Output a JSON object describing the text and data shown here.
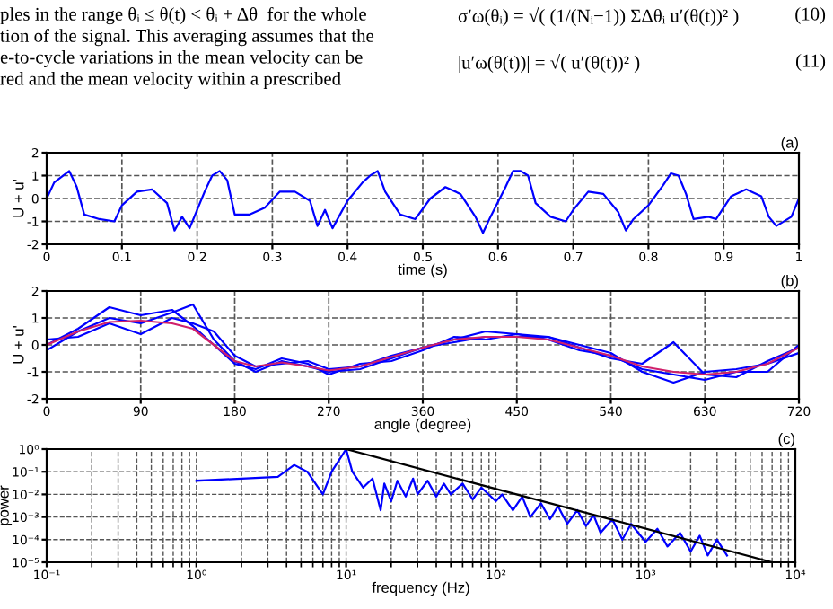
{
  "chart_data": [
    {
      "type": "other",
      "annotations": [
        "ples in the range θᵢ ≤ θ(t) < θᵢ + Δθ  for the whole",
        "tion of the signal. This averaging assumes that the",
        "e-to-cycle variations in the mean velocity can be",
        "red and the mean velocity within a prescribed",
        "σ′ω(θᵢ) = √( (1/(Nᵢ−1)) ΣΔθᵢ u′(θ(t))² )",
        "(10)",
        "|u′ω(θ(t))| = √( u′(θ(t))² )",
        "(11)"
      ]
    },
    {
      "type": "line",
      "xlabel": "time (s)",
      "ylabel": "U + u'",
      "annotations": [
        "(a)"
      ],
      "x": [
        0,
        0.01,
        0.03,
        0.04,
        0.05,
        0.07,
        0.09,
        0.1,
        0.12,
        0.14,
        0.16,
        0.17,
        0.18,
        0.19,
        0.21,
        0.22,
        0.23,
        0.24,
        0.25,
        0.27,
        0.29,
        0.31,
        0.33,
        0.35,
        0.36,
        0.37,
        0.38,
        0.4,
        0.42,
        0.43,
        0.44,
        0.45,
        0.47,
        0.49,
        0.51,
        0.53,
        0.55,
        0.57,
        0.58,
        0.59,
        0.61,
        0.62,
        0.63,
        0.64,
        0.65,
        0.67,
        0.69,
        0.7,
        0.72,
        0.74,
        0.76,
        0.77,
        0.78,
        0.8,
        0.82,
        0.83,
        0.84,
        0.85,
        0.86,
        0.88,
        0.89,
        0.91,
        0.93,
        0.95,
        0.96,
        0.97,
        0.99,
        1.0
      ],
      "series": [
        {
          "color": "#0000ff",
          "values": [
            0,
            0.7,
            1.2,
            0.5,
            -0.7,
            -0.9,
            -1.0,
            -0.3,
            0.3,
            0.4,
            -0.2,
            -1.4,
            -0.8,
            -1.3,
            0.3,
            1.0,
            1.2,
            0.8,
            -0.7,
            -0.7,
            -0.4,
            0.3,
            0.3,
            -0.1,
            -1.2,
            -0.5,
            -1.3,
            -0.1,
            0.7,
            1.0,
            1.2,
            0.3,
            -0.7,
            -0.9,
            0.0,
            0.5,
            0.2,
            -0.8,
            -1.5,
            -0.8,
            0.5,
            1.2,
            1.2,
            1.0,
            -0.2,
            -0.8,
            -1.0,
            -0.5,
            0.3,
            0.2,
            -0.6,
            -1.4,
            -0.9,
            -0.3,
            0.6,
            1.1,
            1.0,
            0.2,
            -0.9,
            -0.8,
            -0.9,
            0.1,
            0.4,
            0.1,
            -0.8,
            -1.2,
            -0.8,
            0.0
          ]
        }
      ],
      "xlim": [
        0,
        1
      ],
      "xticks": [
        0,
        0.1,
        0.2,
        0.3,
        0.4,
        0.5,
        0.6,
        0.7,
        0.8,
        0.9,
        1
      ],
      "ylim": [
        -2,
        2
      ],
      "yticks": [
        -2,
        -1,
        0,
        1,
        2
      ],
      "grid": true,
      "line_style": "solid",
      "marker": "none"
    },
    {
      "type": "line",
      "xlabel": "angle (degree)",
      "ylabel": "U + u'",
      "annotations": [
        "(b)"
      ],
      "x": [
        0,
        30,
        60,
        90,
        120,
        140,
        160,
        180,
        200,
        225,
        250,
        270,
        300,
        330,
        360,
        390,
        420,
        450,
        480,
        510,
        540,
        570,
        600,
        630,
        660,
        690,
        720
      ],
      "series": [
        {
          "color": "#0000ff",
          "values": [
            -0.2,
            0.5,
            1.0,
            0.8,
            1.2,
            1.5,
            0.2,
            -0.6,
            -1.0,
            -0.6,
            -0.8,
            -1.0,
            -0.9,
            -0.5,
            -0.1,
            0.2,
            0.5,
            0.4,
            0.3,
            0.0,
            -0.3,
            -1.0,
            -1.4,
            -1.0,
            -0.9,
            -0.7,
            -0.3
          ]
        },
        {
          "color": "#0000ff",
          "values": [
            0.2,
            0.3,
            0.8,
            0.4,
            1.0,
            0.8,
            0.5,
            -0.4,
            -0.8,
            -0.7,
            -0.6,
            -0.9,
            -0.8,
            -0.4,
            -0.1,
            0.1,
            0.3,
            0.3,
            0.3,
            -0.1,
            -0.5,
            -0.7,
            0.1,
            -1.1,
            -1.2,
            -0.6,
            -0.1
          ]
        },
        {
          "color": "#0000ff",
          "values": [
            0,
            0.6,
            1.4,
            1.1,
            1.3,
            0.7,
            0.0,
            -0.7,
            -0.9,
            -0.5,
            -0.7,
            -1.1,
            -0.7,
            -0.6,
            -0.2,
            0.3,
            0.2,
            0.4,
            0.2,
            -0.2,
            -0.4,
            -0.9,
            -1.1,
            -1.3,
            -1.0,
            -1.0,
            0.0
          ]
        },
        {
          "color": "#d0206a",
          "values": [
            0,
            0.5,
            0.85,
            0.9,
            0.8,
            0.6,
            0.0,
            -0.6,
            -0.8,
            -0.65,
            -0.8,
            -0.95,
            -0.8,
            -0.45,
            -0.1,
            0.2,
            0.3,
            0.3,
            0.2,
            -0.1,
            -0.4,
            -0.8,
            -1.0,
            -1.1,
            -1.0,
            -0.7,
            -0.1
          ]
        }
      ],
      "xlim": [
        0,
        720
      ],
      "xticks": [
        0,
        90,
        180,
        270,
        360,
        450,
        540,
        630,
        720
      ],
      "ylim": [
        -2,
        2
      ],
      "yticks": [
        -2,
        -1,
        0,
        1,
        2
      ],
      "grid": true,
      "line_style": "solid",
      "marker": "none"
    },
    {
      "type": "line",
      "xlabel": "frequency (Hz)",
      "ylabel": "power",
      "annotations": [
        "(c)"
      ],
      "log": "xy",
      "series": [
        {
          "color": "#0000ff",
          "x": [
            1,
            2,
            3.5,
            4.5,
            5.5,
            7,
            8,
            10,
            11,
            13,
            15,
            17,
            18,
            20,
            22,
            25,
            28,
            30,
            35,
            40,
            45,
            50,
            60,
            70,
            80,
            100,
            110,
            130,
            150,
            170,
            200,
            230,
            260,
            300,
            350,
            400,
            450,
            500,
            600,
            700,
            800,
            1000,
            1200,
            1400,
            1700,
            2000,
            2300,
            2600,
            3000,
            3500
          ],
          "values": [
            0.04,
            0.05,
            0.06,
            0.2,
            0.1,
            0.01,
            0.1,
            1,
            0.1,
            0.02,
            0.05,
            0.002,
            0.03,
            0.005,
            0.04,
            0.008,
            0.05,
            0.01,
            0.04,
            0.008,
            0.03,
            0.01,
            0.03,
            0.006,
            0.02,
            0.005,
            0.01,
            0.002,
            0.008,
            0.001,
            0.004,
            0.0008,
            0.003,
            0.0005,
            0.002,
            0.0004,
            0.0012,
            0.0002,
            0.0008,
            0.0001,
            0.0005,
            8e-05,
            0.0003,
            5e-05,
            0.0002,
            3e-05,
            0.00015,
            2e-05,
            0.0001,
            2e-05
          ]
        },
        {
          "color": "#000000",
          "x": [
            10,
            7000
          ],
          "values": [
            1,
            1e-05
          ]
        }
      ],
      "xlim": [
        0.1,
        10000
      ],
      "xticks": [
        {
          "value": 0.1,
          "label": "10⁻¹"
        },
        {
          "value": 1,
          "label": "10⁰"
        },
        {
          "value": 10,
          "label": "10¹"
        },
        {
          "value": 100,
          "label": "10²"
        },
        {
          "value": 1000,
          "label": "10³"
        },
        {
          "value": 10000,
          "label": "10⁴"
        }
      ],
      "ylim": [
        1e-05,
        1
      ],
      "yticks": [
        {
          "value": 1e-05,
          "label": "10⁻⁵"
        },
        {
          "value": 0.0001,
          "label": "10⁻⁴"
        },
        {
          "value": 0.001,
          "label": "10⁻³"
        },
        {
          "value": 0.01,
          "label": "10⁻²"
        },
        {
          "value": 0.1,
          "label": "10⁻¹"
        },
        {
          "value": 1,
          "label": "10⁰"
        }
      ],
      "grid": true,
      "line_style": "solid",
      "marker": "none"
    }
  ]
}
